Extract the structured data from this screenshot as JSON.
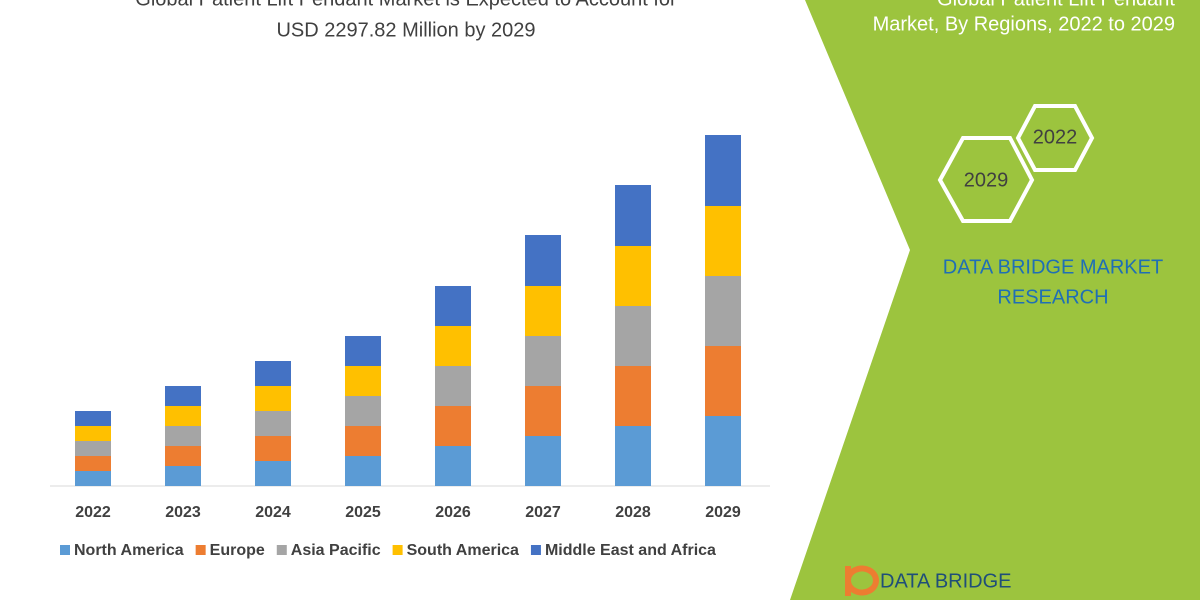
{
  "chart_data": {
    "type": "stacked_bar",
    "title": [
      "Global Patient Lift Pendant Market is Expected to Account for",
      "USD 2297.82 Million by 2029"
    ],
    "categories": [
      "2022",
      "2023",
      "2024",
      "2025",
      "2026",
      "2027",
      "2028",
      "2029"
    ],
    "series": [
      {
        "name": "North America",
        "color": "#5b9bd5",
        "values": [
          15,
          20,
          25,
          30,
          40,
          50,
          60,
          70
        ]
      },
      {
        "name": "Europe",
        "color": "#ed7d31",
        "values": [
          15,
          20,
          25,
          30,
          40,
          50,
          60,
          70
        ]
      },
      {
        "name": "Asia Pacific",
        "color": "#a5a5a5",
        "values": [
          15,
          20,
          25,
          30,
          40,
          50,
          60,
          70
        ]
      },
      {
        "name": "South America",
        "color": "#ffc000",
        "values": [
          15,
          20,
          25,
          30,
          40,
          50,
          60,
          70
        ]
      },
      {
        "name": "Middle East and Africa",
        "color": "#4472c4",
        "values": [
          15,
          20,
          25,
          30,
          40,
          51,
          61,
          71
        ]
      }
    ]
  },
  "panel": {
    "title": [
      "Global Patient Lift Pendant",
      "Market, By Regions, 2022 to 2029"
    ],
    "hexagons": [
      "2022",
      "2029"
    ],
    "brand": [
      "DATA BRIDGE MARKET",
      "RESEARCH"
    ]
  },
  "logo": "DATA BRIDGE"
}
